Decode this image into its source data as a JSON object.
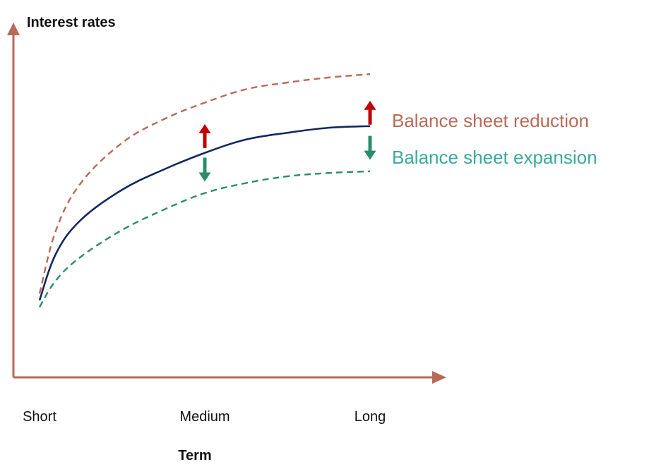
{
  "chart_data": {
    "type": "line",
    "ylabel": "Interest rates",
    "xlabel": "Term",
    "categories": [
      "Short",
      "Medium",
      "Long"
    ],
    "grid": false,
    "ylim": [
      0,
      100
    ],
    "series": [
      {
        "name": "Balance sheet reduction",
        "style": "dashed",
        "color": "#b86a58",
        "x": [
          0,
          0.1,
          0.25,
          0.5,
          0.75,
          1.0,
          1.25,
          1.5,
          1.75,
          2.0
        ],
        "y": [
          25,
          44,
          58,
          70,
          77,
          82,
          86,
          88,
          89.5,
          90.5
        ]
      },
      {
        "name": "",
        "style": "solid",
        "color": "#13285e",
        "x": [
          0,
          0.1,
          0.25,
          0.5,
          0.75,
          1.0,
          1.25,
          1.5,
          1.75,
          2.0
        ],
        "y": [
          23,
          37,
          47,
          56,
          62,
          67,
          71,
          73,
          74.5,
          75
        ]
      },
      {
        "name": "Balance sheet expansion",
        "style": "dashed",
        "color": "#2a8c6d",
        "x": [
          0,
          0.1,
          0.25,
          0.5,
          0.75,
          1.0,
          1.25,
          1.5,
          1.75,
          2.0
        ],
        "y": [
          21,
          29,
          36,
          44,
          50,
          55,
          58,
          60,
          61,
          61.5
        ]
      }
    ],
    "annotations": [
      {
        "type": "arrow-up",
        "x": 1.0,
        "y": 72,
        "color": "#c00000"
      },
      {
        "type": "arrow-up",
        "x": 2.0,
        "y": 79,
        "color": "#c00000"
      },
      {
        "type": "arrow-down",
        "x": 1.0,
        "y": 62,
        "color": "#2a8c6d"
      },
      {
        "type": "arrow-down",
        "x": 2.0,
        "y": 68.5,
        "color": "#2a8c6d"
      }
    ],
    "legend": [
      {
        "label": "Balance sheet reduction",
        "color": "#b86a58"
      },
      {
        "label": "Balance sheet expansion",
        "color": "#3aa99b"
      }
    ],
    "legend_position": "right",
    "axis_color": "#b86a58"
  }
}
